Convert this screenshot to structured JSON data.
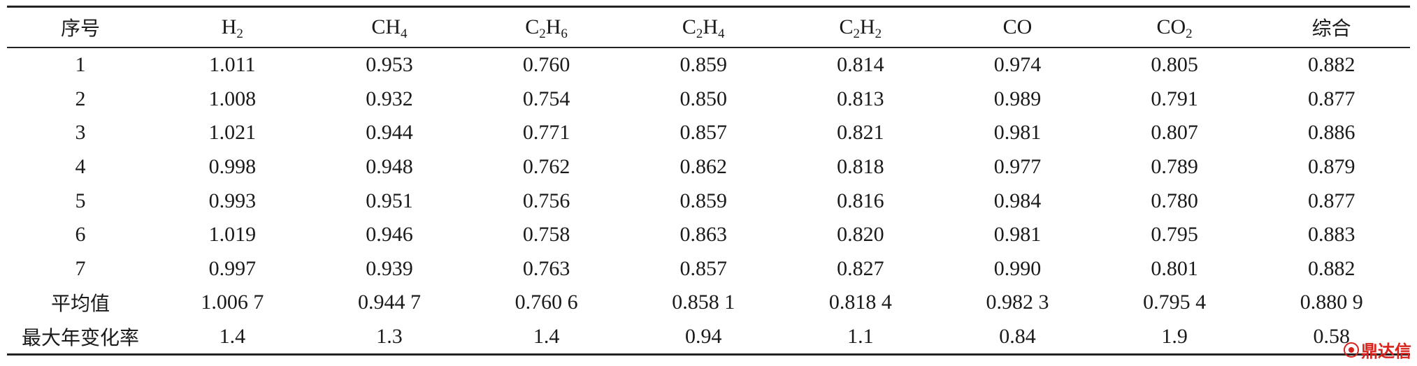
{
  "table": {
    "header": {
      "index_label": "序号",
      "gases": [
        {
          "base": "H",
          "sub": "2",
          "tail": ""
        },
        {
          "base": "CH",
          "sub": "4",
          "tail": ""
        },
        {
          "base": "C",
          "sub": "2",
          "tail": "H",
          "sub2": "6"
        },
        {
          "base": "C",
          "sub": "2",
          "tail": "H",
          "sub2": "4"
        },
        {
          "base": "C",
          "sub": "2",
          "tail": "H",
          "sub2": "2"
        },
        {
          "base": "CO",
          "sub": "",
          "tail": ""
        },
        {
          "base": "CO",
          "sub": "2",
          "tail": ""
        }
      ],
      "overall_label": "综合"
    },
    "rows": [
      {
        "label": "1",
        "values": [
          "1.011",
          "0.953",
          "0.760",
          "0.859",
          "0.814",
          "0.974",
          "0.805",
          "0.882"
        ]
      },
      {
        "label": "2",
        "values": [
          "1.008",
          "0.932",
          "0.754",
          "0.850",
          "0.813",
          "0.989",
          "0.791",
          "0.877"
        ]
      },
      {
        "label": "3",
        "values": [
          "1.021",
          "0.944",
          "0.771",
          "0.857",
          "0.821",
          "0.981",
          "0.807",
          "0.886"
        ]
      },
      {
        "label": "4",
        "values": [
          "0.998",
          "0.948",
          "0.762",
          "0.862",
          "0.818",
          "0.977",
          "0.789",
          "0.879"
        ]
      },
      {
        "label": "5",
        "values": [
          "0.993",
          "0.951",
          "0.756",
          "0.859",
          "0.816",
          "0.984",
          "0.780",
          "0.877"
        ]
      },
      {
        "label": "6",
        "values": [
          "1.019",
          "0.946",
          "0.758",
          "0.863",
          "0.820",
          "0.981",
          "0.795",
          "0.883"
        ]
      },
      {
        "label": "7",
        "values": [
          "0.997",
          "0.939",
          "0.763",
          "0.857",
          "0.827",
          "0.990",
          "0.801",
          "0.882"
        ]
      },
      {
        "label": "平均值",
        "cjk": true,
        "values": [
          "1.006 7",
          "0.944 7",
          "0.760 6",
          "0.858 1",
          "0.818 4",
          "0.982 3",
          "0.795 4",
          "0.880 9"
        ]
      },
      {
        "label": "最大年变化率",
        "cjk": true,
        "values": [
          "1.4",
          "1.3",
          "1.4",
          "0.94",
          "1.1",
          "0.84",
          "1.9",
          "0.58"
        ]
      }
    ]
  },
  "watermark": {
    "text": "鼎达信",
    "color": "#d9221c"
  }
}
